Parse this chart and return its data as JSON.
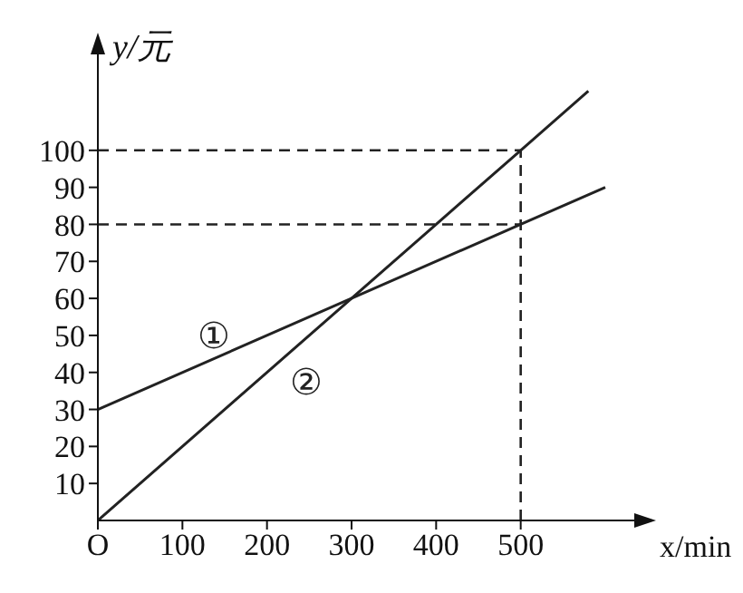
{
  "chart_data": {
    "type": "line",
    "xlabel": "x/min",
    "ylabel": "y/元",
    "series": [
      {
        "name": "①",
        "color": "#222222",
        "x": [
          0,
          500,
          600
        ],
        "values": [
          30,
          80,
          90
        ]
      },
      {
        "name": "②",
        "color": "#222222",
        "x": [
          0,
          500,
          580
        ],
        "values": [
          0,
          100,
          116
        ]
      }
    ],
    "xlim": [
      0,
      630
    ],
    "ylim": [
      0,
      122
    ],
    "xticks": [
      {
        "value": 0,
        "label": "O"
      },
      100,
      200,
      300,
      400,
      500
    ],
    "yticks": [
      10,
      20,
      30,
      40,
      50,
      60,
      70,
      80,
      90,
      100
    ],
    "ref_lines": [
      {
        "axis": "y",
        "value": 100,
        "line_style": "dashed",
        "color": "#222222"
      },
      {
        "axis": "y",
        "value": 80,
        "line_style": "dashed",
        "color": "#222222"
      },
      {
        "axis": "x",
        "value": 500,
        "line_style": "dashed",
        "color": "#222222"
      }
    ],
    "grid": false,
    "legend": false,
    "marker": "none",
    "line_style": "solid"
  }
}
